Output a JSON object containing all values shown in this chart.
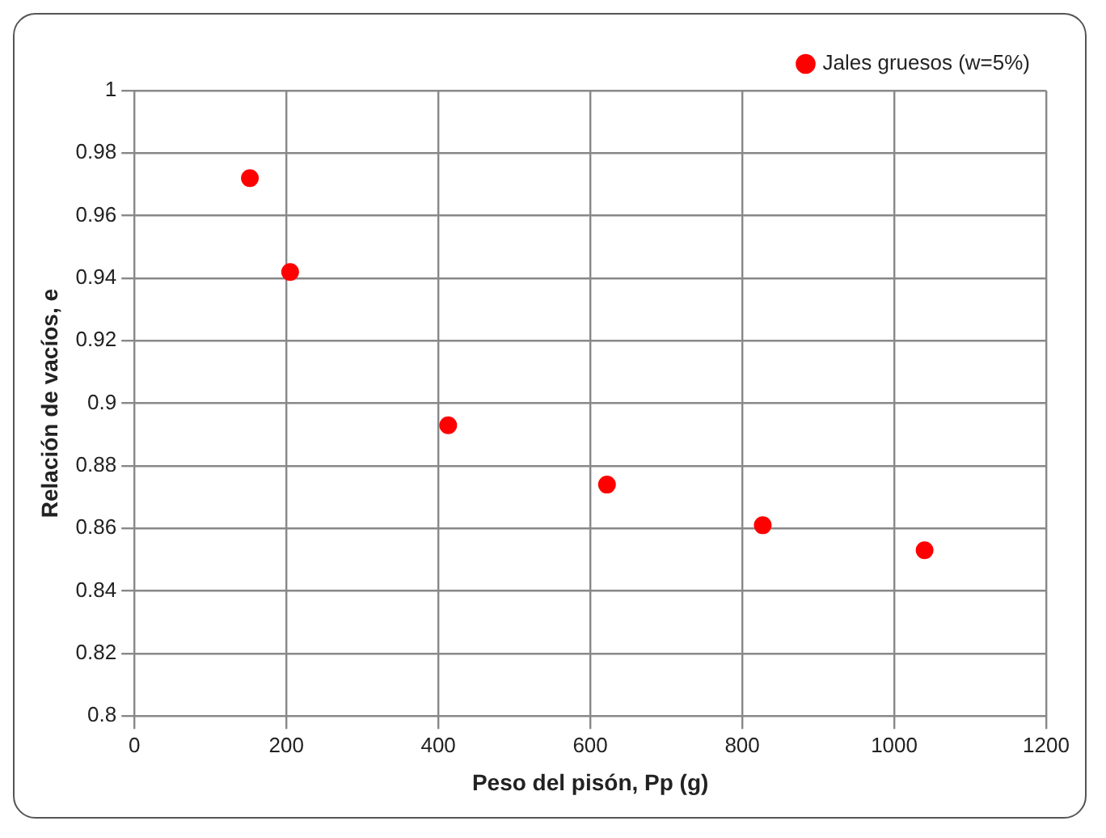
{
  "chart_data": {
    "type": "scatter",
    "xlabel": "Peso del pisón, Pp (g)",
    "ylabel": "Relación de vacíos, e",
    "series": [
      {
        "name": "Jales gruesos (w=5%)",
        "color": "#ff0000",
        "x": [
          152,
          205,
          413,
          622,
          827,
          1040
        ],
        "values": [
          0.972,
          0.942,
          0.893,
          0.874,
          0.861,
          0.853
        ]
      }
    ],
    "xlim": [
      0,
      1200
    ],
    "xticks": [
      0,
      200,
      400,
      600,
      800,
      1000,
      1200
    ],
    "ylim": [
      0.8,
      1
    ],
    "yticks": [
      0.8,
      0.82,
      0.84,
      0.86,
      0.88,
      0.9,
      0.92,
      0.94,
      0.96,
      0.98,
      1
    ],
    "grid": true,
    "legend": "top right",
    "marker": "circle"
  }
}
